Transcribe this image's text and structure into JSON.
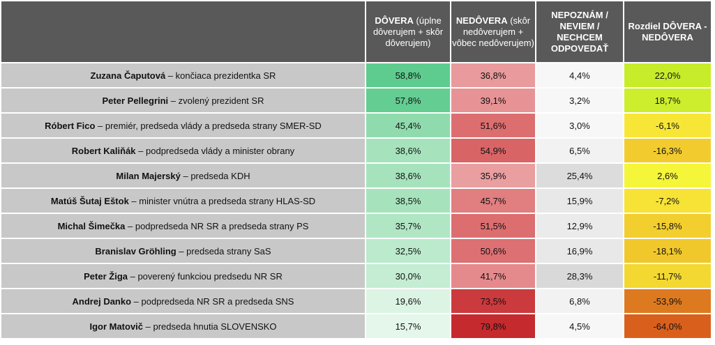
{
  "header": {
    "trust": {
      "bold": "DÔVERA",
      "rest": " (úplne dôverujem + skôr dôverujem)"
    },
    "distrust": {
      "bold": "NEDÔVERA",
      "rest": " (skôr nedôverujem + vôbec nedôverujem)"
    },
    "unknown": {
      "bold": "NEPOZNÁM / NEVIEM / NECHCEM ODPOVEDAŤ",
      "rest": ""
    },
    "difference": {
      "bold": "Rozdiel DÔVERA - NEDÔVERA",
      "rest": ""
    }
  },
  "colors": {
    "header_bg": "#595959",
    "name_bg": "#c8c8c8",
    "unknown_bg": "#f3f3f3"
  },
  "chart_data": {
    "type": "table",
    "columns": [
      "DÔVERA",
      "NEDÔVERA",
      "NEPOZNÁM / NEVIEM / NECHCEM ODPOVEDAŤ",
      "Rozdiel DÔVERA - NEDÔVERA"
    ],
    "rows": [
      {
        "name": "Zuzana Čaputová",
        "role": " – končiaca prezidentka SR",
        "trust": "58,8%",
        "distrust": "36,8%",
        "unknown": "4,4%",
        "diff": "22,0%",
        "trust_bg": "#5ecc8e",
        "distrust_bg": "#e89a9c",
        "unknown_bg": "#f7f7f7",
        "diff_bg": "#c6ec2a"
      },
      {
        "name": "Peter Pellegrini",
        "role": " – zvolený prezident SR",
        "trust": "57,8%",
        "distrust": "39,1%",
        "unknown": "3,2%",
        "diff": "18,7%",
        "trust_bg": "#64cd92",
        "distrust_bg": "#e79395",
        "unknown_bg": "#f7f7f7",
        "diff_bg": "#ccee2c"
      },
      {
        "name": "Róbert Fico",
        "role": " – premiér, predseda vlády a predseda strany SMER-SD",
        "trust": "45,4%",
        "distrust": "51,6%",
        "unknown": "3,0%",
        "diff": "-6,1%",
        "trust_bg": "#90dbad",
        "distrust_bg": "#dc6e70",
        "unknown_bg": "#f7f7f7",
        "diff_bg": "#f7e636"
      },
      {
        "name": "Robert Kaliňák",
        "role": " – podpredseda vlády a minister obrany",
        "trust": "38,6%",
        "distrust": "54,9%",
        "unknown": "6,5%",
        "diff": "-16,3%",
        "trust_bg": "#a6e3bd",
        "distrust_bg": "#d96466",
        "unknown_bg": "#f2f2f2",
        "diff_bg": "#f2cc2e"
      },
      {
        "name": "Milan Majerský",
        "role": " – predseda KDH",
        "trust": "38,6%",
        "distrust": "35,9%",
        "unknown": "25,4%",
        "diff": "2,6%",
        "trust_bg": "#a6e3bd",
        "distrust_bg": "#e99ea0",
        "unknown_bg": "#dcdcdc",
        "diff_bg": "#f5f53a"
      },
      {
        "name": "Matúš Šutaj Eštok",
        "role": " – minister vnútra a predseda strany HLAS-SD",
        "trust": "38,5%",
        "distrust": "45,7%",
        "unknown": "15,9%",
        "diff": "-7,2%",
        "trust_bg": "#a6e3bd",
        "distrust_bg": "#e07e80",
        "unknown_bg": "#e8e8e8",
        "diff_bg": "#f7e236"
      },
      {
        "name": "Michal Šimečka",
        "role": " – podpredseda NR SR a predseda strany PS",
        "trust": "35,7%",
        "distrust": "51,5%",
        "unknown": "12,9%",
        "diff": "-15,8%",
        "trust_bg": "#b0e6c4",
        "distrust_bg": "#dc6e70",
        "unknown_bg": "#ebebeb",
        "diff_bg": "#f2ce2e"
      },
      {
        "name": "Branislav Gröhling",
        "role": " – predseda strany SaS",
        "trust": "32,5%",
        "distrust": "50,6%",
        "unknown": "16,9%",
        "diff": "-18,1%",
        "trust_bg": "#bbeacd",
        "distrust_bg": "#dd7072",
        "unknown_bg": "#e8e8e8",
        "diff_bg": "#f0c82c"
      },
      {
        "name": "Peter Žiga",
        "role": " – poverený funkciou predsedu NR SR",
        "trust": "30,0%",
        "distrust": "41,7%",
        "unknown": "28,3%",
        "diff": "-11,7%",
        "trust_bg": "#c4edd3",
        "distrust_bg": "#e48a8c",
        "unknown_bg": "#d9d9d9",
        "diff_bg": "#f4d832"
      },
      {
        "name": "Andrej Danko",
        "role": " – podpredseda NR SR a predseda SNS",
        "trust": "19,6%",
        "distrust": "73,5%",
        "unknown": "6,8%",
        "diff": "-53,9%",
        "trust_bg": "#dcf4e4",
        "distrust_bg": "#cb3a3d",
        "unknown_bg": "#f2f2f2",
        "diff_bg": "#dd7a20"
      },
      {
        "name": "Igor Matovič",
        "role": " – predseda hnutia SLOVENSKO",
        "trust": "15,7%",
        "distrust": "79,8%",
        "unknown": "4,5%",
        "diff": "-64,0%",
        "trust_bg": "#e4f7ea",
        "distrust_bg": "#c52a2e",
        "unknown_bg": "#f7f7f7",
        "diff_bg": "#d9601c"
      }
    ]
  }
}
